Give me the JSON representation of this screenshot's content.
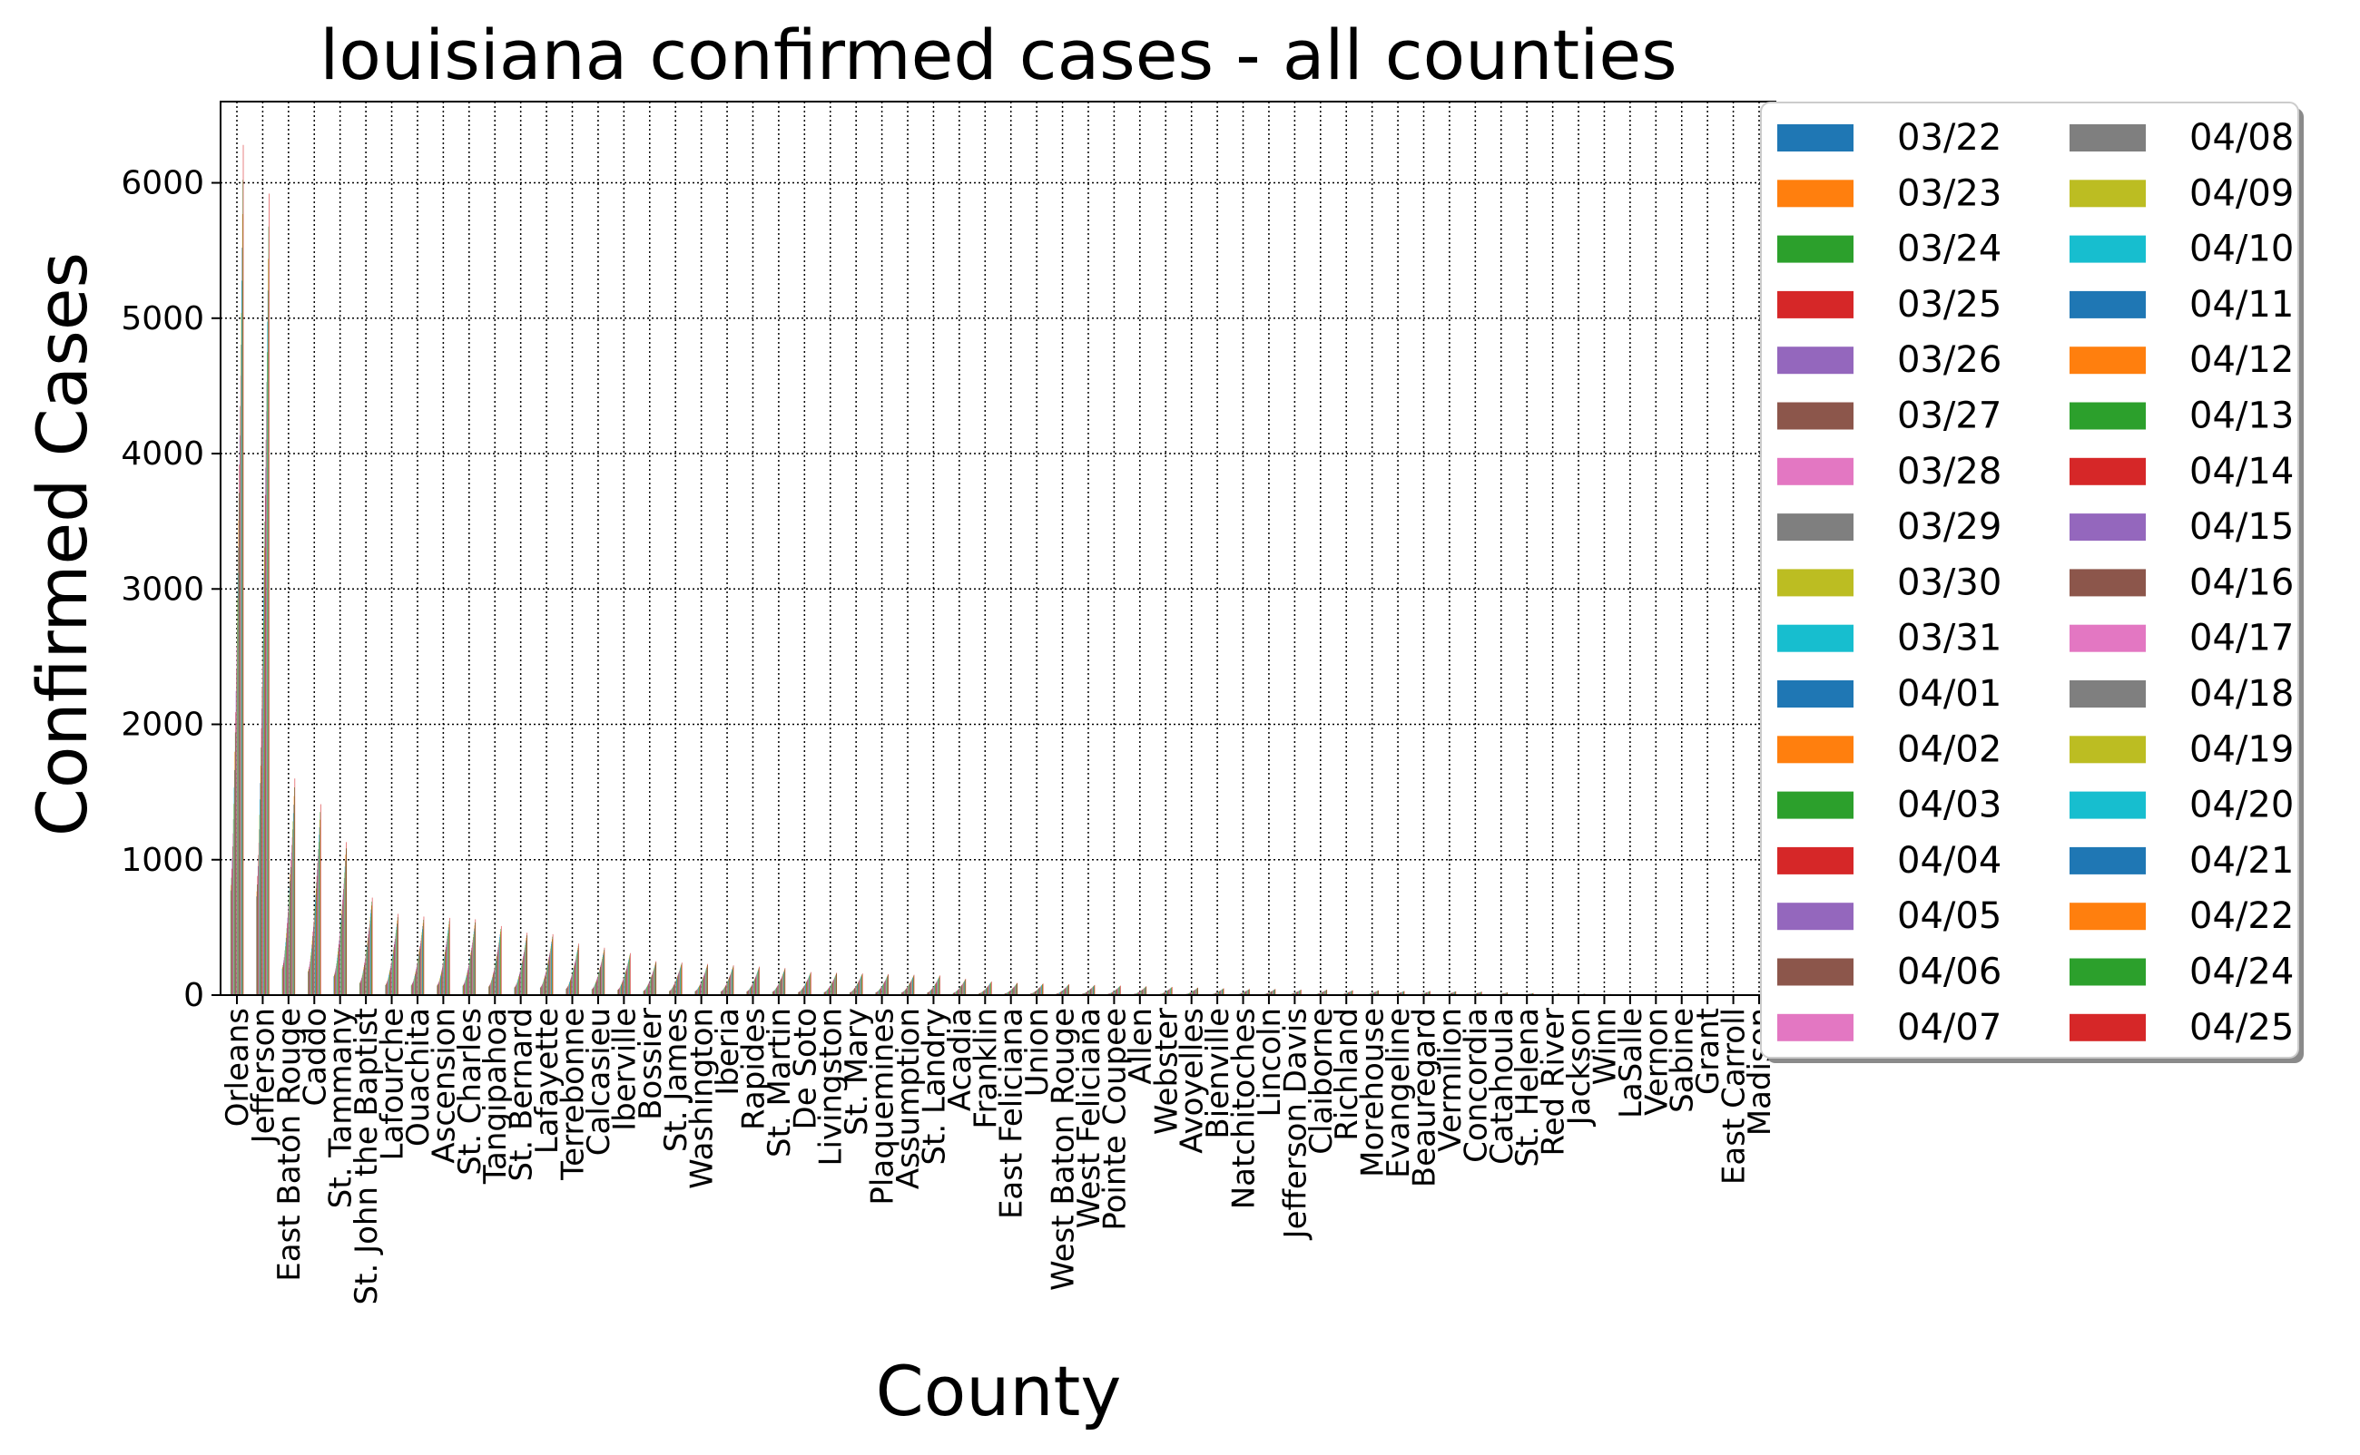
{
  "chart_data": {
    "type": "bar",
    "title": "louisiana confirmed cases - all counties",
    "xlabel": "County",
    "ylabel": "Confirmed Cases",
    "ylim": [
      0,
      6600
    ],
    "yticks": [
      0,
      1000,
      2000,
      3000,
      4000,
      5000,
      6000
    ],
    "grid": true,
    "legend_position": "outside-right",
    "categories": [
      "Orleans",
      "Jefferson",
      "East Baton Rouge",
      "Caddo",
      "St. Tammany",
      "St. John the Baptist",
      "Lafourche",
      "Ouachita",
      "Ascension",
      "St. Charles",
      "Tangipahoa",
      "St. Bernard",
      "Lafayette",
      "Terrebonne",
      "Calcasieu",
      "Iberville",
      "Bossier",
      "St. James",
      "Washington",
      "Iberia",
      "Rapides",
      "St. Martin",
      "De Soto",
      "Livingston",
      "St. Mary",
      "Plaquemines",
      "Assumption",
      "St. Landry",
      "Acadia",
      "Franklin",
      "East Feliciana",
      "Union",
      "West Baton Rouge",
      "West Feliciana",
      "Pointe Coupee",
      "Allen",
      "Webster",
      "Avoyelles",
      "Bienville",
      "Natchitoches",
      "Lincoln",
      "Jefferson Davis",
      "Claiborne",
      "Richland",
      "Morehouse",
      "Evangeline",
      "Beauregard",
      "Vermilion",
      "Concordia",
      "Catahoula",
      "St. Helena",
      "Red River",
      "Jackson",
      "Winn",
      "LaSalle",
      "Vernon",
      "Sabine",
      "Grant",
      "East Carroll",
      "Madison"
    ],
    "final_values": [
      6280,
      5920,
      1600,
      1410,
      1130,
      720,
      600,
      580,
      570,
      560,
      510,
      460,
      450,
      380,
      350,
      310,
      250,
      240,
      230,
      220,
      210,
      200,
      170,
      165,
      160,
      155,
      150,
      145,
      120,
      100,
      90,
      85,
      80,
      75,
      70,
      65,
      60,
      55,
      50,
      45,
      45,
      40,
      40,
      35,
      35,
      30,
      30,
      28,
      25,
      20,
      15,
      12,
      10,
      8,
      6,
      5,
      4,
      3,
      2,
      1
    ],
    "series": [
      {
        "name": "03/22",
        "color": "#1f77b4"
      },
      {
        "name": "03/23",
        "color": "#ff7f0e"
      },
      {
        "name": "03/24",
        "color": "#2ca02c"
      },
      {
        "name": "03/25",
        "color": "#d62728"
      },
      {
        "name": "03/26",
        "color": "#9467bd"
      },
      {
        "name": "03/27",
        "color": "#8c564b"
      },
      {
        "name": "03/28",
        "color": "#e377c2"
      },
      {
        "name": "03/29",
        "color": "#7f7f7f"
      },
      {
        "name": "03/30",
        "color": "#bcbd22"
      },
      {
        "name": "03/31",
        "color": "#17becf"
      },
      {
        "name": "04/01",
        "color": "#1f77b4"
      },
      {
        "name": "04/02",
        "color": "#ff7f0e"
      },
      {
        "name": "04/03",
        "color": "#2ca02c"
      },
      {
        "name": "04/04",
        "color": "#d62728"
      },
      {
        "name": "04/05",
        "color": "#9467bd"
      },
      {
        "name": "04/06",
        "color": "#8c564b"
      },
      {
        "name": "04/07",
        "color": "#e377c2"
      },
      {
        "name": "04/08",
        "color": "#7f7f7f"
      },
      {
        "name": "04/09",
        "color": "#bcbd22"
      },
      {
        "name": "04/10",
        "color": "#17becf"
      },
      {
        "name": "04/11",
        "color": "#1f77b4"
      },
      {
        "name": "04/12",
        "color": "#ff7f0e"
      },
      {
        "name": "04/13",
        "color": "#2ca02c"
      },
      {
        "name": "04/14",
        "color": "#d62728"
      },
      {
        "name": "04/15",
        "color": "#9467bd"
      },
      {
        "name": "04/16",
        "color": "#8c564b"
      },
      {
        "name": "04/17",
        "color": "#e377c2"
      },
      {
        "name": "04/18",
        "color": "#7f7f7f"
      },
      {
        "name": "04/19",
        "color": "#bcbd22"
      },
      {
        "name": "04/20",
        "color": "#17becf"
      },
      {
        "name": "04/21",
        "color": "#1f77b4"
      },
      {
        "name": "04/22",
        "color": "#ff7f0e"
      },
      {
        "name": "04/24",
        "color": "#2ca02c"
      },
      {
        "name": "04/25",
        "color": "#d62728"
      }
    ]
  }
}
